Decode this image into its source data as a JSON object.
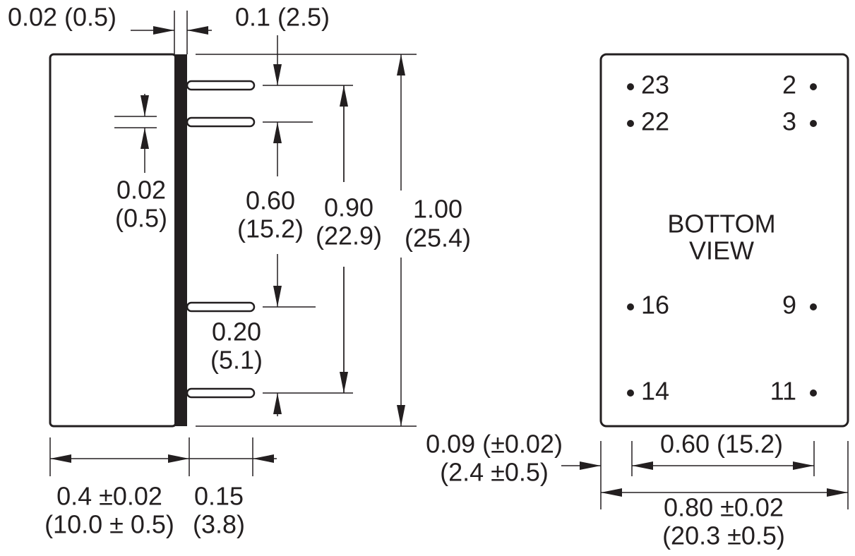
{
  "side_view": {
    "dimensions": [
      {
        "lines": [
          "0.02 (0.5)"
        ]
      },
      {
        "lines": [
          "0.1 (2.5)"
        ]
      },
      {
        "lines": [
          "0.02",
          "(0.5)"
        ]
      },
      {
        "lines": [
          "0.60",
          "(15.2)"
        ]
      },
      {
        "lines": [
          "0.90",
          "(22.9)"
        ]
      },
      {
        "lines": [
          "1.00",
          "(25.4)"
        ]
      },
      {
        "lines": [
          "0.20",
          "(5.1)"
        ]
      },
      {
        "lines": [
          "0.4 ±0.02",
          "(10.0 ± 0.5)"
        ]
      },
      {
        "lines": [
          "0.15",
          "(3.8)"
        ]
      }
    ]
  },
  "bottom_view": {
    "label": [
      "BOTTOM",
      "VIEW"
    ],
    "pins": [
      "23",
      "2",
      "22",
      "3",
      "16",
      "9",
      "14",
      "11"
    ],
    "dimensions": [
      {
        "lines": [
          "0.09 (±0.02)",
          "(2.4 ±0.5)"
        ]
      },
      {
        "lines": [
          "0.60 (15.2)"
        ]
      },
      {
        "lines": [
          "0.80 ±0.02",
          "(20.3 ±0.5)"
        ]
      }
    ]
  }
}
